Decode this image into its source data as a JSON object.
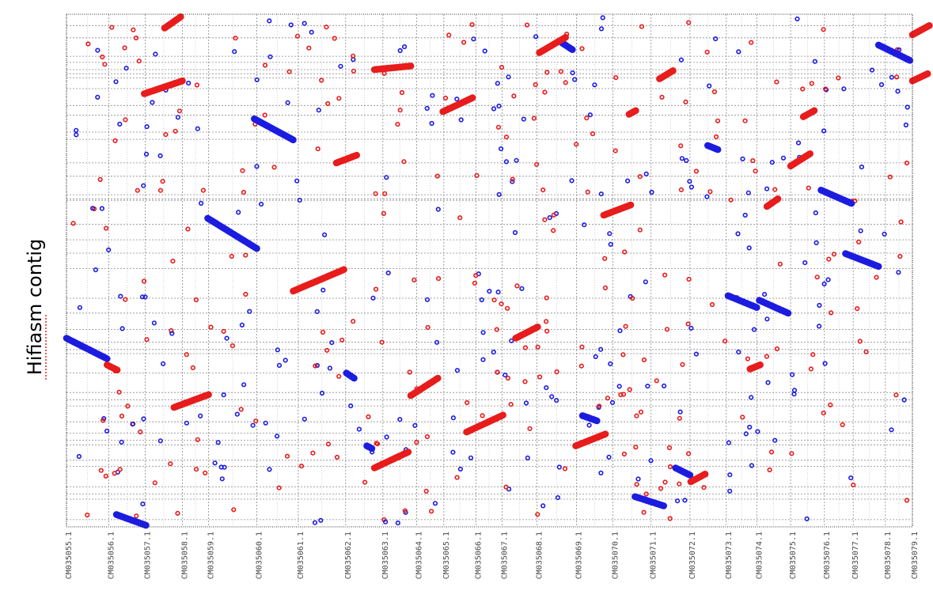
{
  "chart_data": {
    "type": "scatter",
    "ylabel": "Hifiasm contig",
    "xlabel": "",
    "xlim": [
      0,
      1000
    ],
    "ylim": [
      0,
      1000
    ],
    "grid": true,
    "colors": {
      "forward": "#e81c1c",
      "reverse": "#1c1ce0"
    },
    "x_ticks": [
      {
        "label": "CM035055.1",
        "pos": 0
      },
      {
        "label": "CM035056.1",
        "pos": 50
      },
      {
        "label": "CM035057.1",
        "pos": 93
      },
      {
        "label": "CM035058.1",
        "pos": 137
      },
      {
        "label": "CM035059.1",
        "pos": 168
      },
      {
        "label": "CM035060.1",
        "pos": 225
      },
      {
        "label": "CM035061.1",
        "pos": 274
      },
      {
        "label": "CM035062.1",
        "pos": 330
      },
      {
        "label": "CM035063.1",
        "pos": 374
      },
      {
        "label": "CM035064.1",
        "pos": 414
      },
      {
        "label": "CM035065.1",
        "pos": 446
      },
      {
        "label": "CM035066.1",
        "pos": 484
      },
      {
        "label": "CM035067.1",
        "pos": 515
      },
      {
        "label": "CM035068.1",
        "pos": 556
      },
      {
        "label": "CM035069.1",
        "pos": 603
      },
      {
        "label": "CM035070.1",
        "pos": 646
      },
      {
        "label": "CM035071.1",
        "pos": 691
      },
      {
        "label": "CM035072.1",
        "pos": 737
      },
      {
        "label": "CM035073.1",
        "pos": 780
      },
      {
        "label": "CM035074.1",
        "pos": 816
      },
      {
        "label": "CM035075.1",
        "pos": 856
      },
      {
        "label": "CM035076.1",
        "pos": 896
      },
      {
        "label": "CM035077.1",
        "pos": 930
      },
      {
        "label": "CM035078.1",
        "pos": 968
      },
      {
        "label": "CM035079.1",
        "pos": 1000
      }
    ],
    "y_breaks": [
      14,
      54,
      64,
      78,
      118,
      130,
      160,
      169,
      183,
      205,
      236,
      248,
      262,
      300,
      338,
      346,
      360,
      385,
      417,
      446,
      504,
      534,
      560,
      590,
      637,
      640,
      648,
      684,
      710,
      756,
      770,
      803,
      822,
      855,
      876,
      884,
      892,
      906,
      918,
      954,
      978
    ],
    "alignments": [
      {
        "strand": "reverse",
        "x": [
          0,
          48
        ],
        "y": [
          368,
          328
        ]
      },
      {
        "strand": "forward",
        "x": [
          48,
          60
        ],
        "y": [
          316,
          306
        ]
      },
      {
        "strand": "reverse",
        "x": [
          59,
          94
        ],
        "y": [
          24,
          3
        ]
      },
      {
        "strand": "forward",
        "x": [
          127,
          168
        ],
        "y": [
          233,
          258
        ]
      },
      {
        "strand": "forward",
        "x": [
          92,
          137
        ],
        "y": [
          845,
          870
        ]
      },
      {
        "strand": "forward",
        "x": [
          116,
          135
        ],
        "y": [
          973,
          995
        ]
      },
      {
        "strand": "reverse",
        "x": [
          167,
          225
        ],
        "y": [
          602,
          543
        ]
      },
      {
        "strand": "reverse",
        "x": [
          222,
          268
        ],
        "y": [
          796,
          755
        ]
      },
      {
        "strand": "forward",
        "x": [
          268,
          328
        ],
        "y": [
          460,
          502
        ]
      },
      {
        "strand": "forward",
        "x": [
          319,
          343
        ],
        "y": [
          710,
          725
        ]
      },
      {
        "strand": "forward",
        "x": [
          364,
          407
        ],
        "y": [
          892,
          899
        ]
      },
      {
        "strand": "reverse",
        "x": [
          331,
          340
        ],
        "y": [
          300,
          290
        ]
      },
      {
        "strand": "reverse",
        "x": [
          355,
          361
        ],
        "y": [
          158,
          153
        ]
      },
      {
        "strand": "forward",
        "x": [
          364,
          404
        ],
        "y": [
          115,
          146
        ]
      },
      {
        "strand": "forward",
        "x": [
          407,
          439
        ],
        "y": [
          256,
          290
        ]
      },
      {
        "strand": "forward",
        "x": [
          445,
          480
        ],
        "y": [
          810,
          837
        ]
      },
      {
        "strand": "forward",
        "x": [
          473,
          516
        ],
        "y": [
          185,
          218
        ]
      },
      {
        "strand": "forward",
        "x": [
          531,
          557
        ],
        "y": [
          368,
          390
        ]
      },
      {
        "strand": "reverse",
        "x": [
          586,
          598
        ],
        "y": [
          944,
          931
        ]
      },
      {
        "strand": "forward",
        "x": [
          559,
          590
        ],
        "y": [
          925,
          955
        ]
      },
      {
        "strand": "forward",
        "x": [
          602,
          637
        ],
        "y": [
          158,
          181
        ]
      },
      {
        "strand": "forward",
        "x": [
          635,
          667
        ],
        "y": [
          608,
          628
        ]
      },
      {
        "strand": "forward",
        "x": [
          665,
          673
        ],
        "y": [
          805,
          812
        ]
      },
      {
        "strand": "reverse",
        "x": [
          672,
          706
        ],
        "y": [
          59,
          41
        ]
      },
      {
        "strand": "reverse",
        "x": [
          720,
          737
        ],
        "y": [
          115,
          101
        ]
      },
      {
        "strand": "forward",
        "x": [
          738,
          755
        ],
        "y": [
          88,
          103
        ]
      },
      {
        "strand": "forward",
        "x": [
          701,
          717
        ],
        "y": [
          874,
          890
        ]
      },
      {
        "strand": "reverse",
        "x": [
          758,
          770
        ],
        "y": [
          744,
          736
        ]
      },
      {
        "strand": "reverse",
        "x": [
          782,
          816
        ],
        "y": [
          451,
          428
        ]
      },
      {
        "strand": "reverse",
        "x": [
          819,
          853
        ],
        "y": [
          442,
          417
        ]
      },
      {
        "strand": "forward",
        "x": [
          828,
          841
        ],
        "y": [
          625,
          640
        ]
      },
      {
        "strand": "forward",
        "x": [
          856,
          879
        ],
        "y": [
          704,
          728
        ]
      },
      {
        "strand": "forward",
        "x": [
          871,
          884
        ],
        "y": [
          800,
          812
        ]
      },
      {
        "strand": "forward",
        "x": [
          808,
          820
        ],
        "y": [
          308,
          316
        ]
      },
      {
        "strand": "reverse",
        "x": [
          892,
          928
        ],
        "y": [
          657,
          631
        ]
      },
      {
        "strand": "reverse",
        "x": [
          921,
          960
        ],
        "y": [
          533,
          508
        ]
      },
      {
        "strand": "reverse",
        "x": [
          960,
          997
        ],
        "y": [
          940,
          910
        ]
      },
      {
        "strand": "forward",
        "x": [
          1000,
          1020
        ],
        "y": [
          960,
          978
        ]
      },
      {
        "strand": "forward",
        "x": [
          1000,
          1018
        ],
        "y": [
          870,
          884
        ]
      },
      {
        "strand": "reverse",
        "x": [
          610,
          627
        ],
        "y": [
          217,
          207
        ]
      }
    ]
  }
}
